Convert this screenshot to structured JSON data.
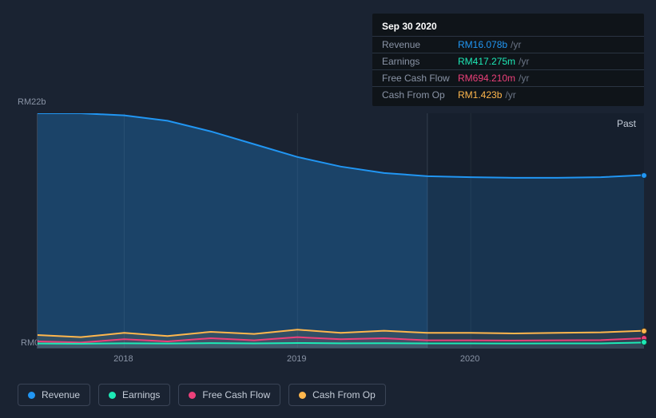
{
  "tooltip": {
    "date": "Sep 30 2020",
    "rows": [
      {
        "label": "Revenue",
        "value": "RM16.078b",
        "color": "#2196f3",
        "suffix": "/yr"
      },
      {
        "label": "Earnings",
        "value": "RM417.275m",
        "color": "#1de9b6",
        "suffix": "/yr"
      },
      {
        "label": "Free Cash Flow",
        "value": "RM694.210m",
        "color": "#ec407a",
        "suffix": "/yr"
      },
      {
        "label": "Cash From Op",
        "value": "RM1.423b",
        "color": "#ffb74d",
        "suffix": "/yr"
      }
    ]
  },
  "chart": {
    "type": "area",
    "background_color": "#1a2332",
    "grid_color": "#2a3442",
    "axis_color": "#3a4456",
    "label_color": "#8a94a6",
    "y_max_label": "RM22b",
    "y_min_label": "RM0",
    "ylim": [
      0,
      22000
    ],
    "x_domain": [
      2017.5,
      2021.0
    ],
    "x_ticks": [
      {
        "pos": 2018,
        "label": "2018"
      },
      {
        "pos": 2019,
        "label": "2019"
      },
      {
        "pos": 2020,
        "label": "2020"
      }
    ],
    "past_label": "Past",
    "divider_x": 2019.75,
    "series": [
      {
        "key": "revenue",
        "name": "Revenue",
        "color": "#2196f3",
        "fill_opacity_past": 0.28,
        "fill_opacity_future": 0.18,
        "line_width": 2,
        "points": [
          [
            2017.5,
            22000
          ],
          [
            2017.75,
            22000
          ],
          [
            2018.0,
            21800
          ],
          [
            2018.25,
            21300
          ],
          [
            2018.5,
            20300
          ],
          [
            2018.75,
            19100
          ],
          [
            2019.0,
            17900
          ],
          [
            2019.25,
            17000
          ],
          [
            2019.5,
            16400
          ],
          [
            2019.75,
            16100
          ],
          [
            2020.0,
            16000
          ],
          [
            2020.25,
            15950
          ],
          [
            2020.5,
            15950
          ],
          [
            2020.75,
            16000
          ],
          [
            2021.0,
            16200
          ]
        ]
      },
      {
        "key": "cash_from_op",
        "name": "Cash From Op",
        "color": "#ffb74d",
        "fill_opacity_past": 0.1,
        "fill_opacity_future": 0.07,
        "line_width": 2,
        "points": [
          [
            2017.5,
            1200
          ],
          [
            2017.75,
            1000
          ],
          [
            2018.0,
            1400
          ],
          [
            2018.25,
            1100
          ],
          [
            2018.5,
            1500
          ],
          [
            2018.75,
            1300
          ],
          [
            2019.0,
            1700
          ],
          [
            2019.25,
            1400
          ],
          [
            2019.5,
            1600
          ],
          [
            2019.75,
            1400
          ],
          [
            2020.0,
            1400
          ],
          [
            2020.25,
            1350
          ],
          [
            2020.5,
            1400
          ],
          [
            2020.75,
            1450
          ],
          [
            2021.0,
            1600
          ]
        ]
      },
      {
        "key": "free_cash_flow",
        "name": "Free Cash Flow",
        "color": "#ec407a",
        "fill_opacity_past": 0.1,
        "fill_opacity_future": 0.07,
        "line_width": 2,
        "points": [
          [
            2017.5,
            600
          ],
          [
            2017.75,
            500
          ],
          [
            2018.0,
            800
          ],
          [
            2018.25,
            600
          ],
          [
            2018.5,
            900
          ],
          [
            2018.75,
            700
          ],
          [
            2019.0,
            1000
          ],
          [
            2019.25,
            800
          ],
          [
            2019.5,
            900
          ],
          [
            2019.75,
            700
          ],
          [
            2020.0,
            700
          ],
          [
            2020.25,
            680
          ],
          [
            2020.5,
            700
          ],
          [
            2020.75,
            720
          ],
          [
            2021.0,
            900
          ]
        ]
      },
      {
        "key": "earnings",
        "name": "Earnings",
        "color": "#1de9b6",
        "fill_opacity_past": 0.1,
        "fill_opacity_future": 0.07,
        "line_width": 2,
        "points": [
          [
            2017.5,
            400
          ],
          [
            2017.75,
            380
          ],
          [
            2018.0,
            420
          ],
          [
            2018.25,
            400
          ],
          [
            2018.5,
            440
          ],
          [
            2018.75,
            410
          ],
          [
            2019.0,
            450
          ],
          [
            2019.25,
            420
          ],
          [
            2019.5,
            430
          ],
          [
            2019.75,
            415
          ],
          [
            2020.0,
            410
          ],
          [
            2020.25,
            405
          ],
          [
            2020.5,
            410
          ],
          [
            2020.75,
            415
          ],
          [
            2021.0,
            500
          ]
        ]
      }
    ],
    "legend": [
      {
        "key": "revenue",
        "label": "Revenue",
        "color": "#2196f3"
      },
      {
        "key": "earnings",
        "label": "Earnings",
        "color": "#1de9b6"
      },
      {
        "key": "free_cash_flow",
        "label": "Free Cash Flow",
        "color": "#ec407a"
      },
      {
        "key": "cash_from_op",
        "label": "Cash From Op",
        "color": "#ffb74d"
      }
    ]
  }
}
